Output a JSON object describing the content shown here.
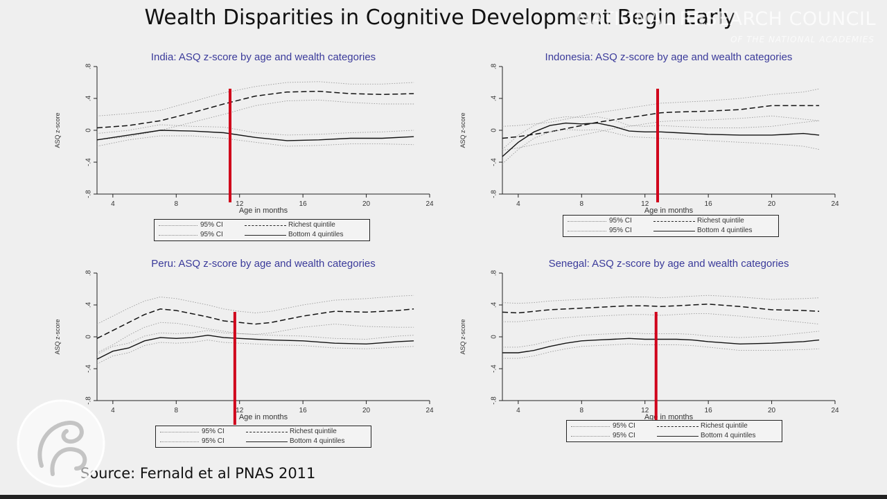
{
  "title": "Wealth Disparities in Cognitive Development Begin Early",
  "watermark": {
    "line1": "NATIONAL RESEARCH COUNCIL",
    "line2": "OF THE NATIONAL ACADEMIES"
  },
  "source": "Source: Fernald et al PNAS 2011",
  "colors": {
    "marker": "#d0021b",
    "title_blue": "#3a3a9a"
  },
  "legend": {
    "ci_label": "95% CI",
    "series_labels": [
      "Richest quintile",
      "Bottom 4 quintiles"
    ]
  },
  "chart_data": [
    {
      "type": "line",
      "title": "India: ASQ z-score by age and wealth categories",
      "xlabel": "Age in months",
      "ylabel": "ASQ z-score",
      "xlim": [
        3,
        24
      ],
      "ylim": [
        -0.8,
        0.8
      ],
      "xticks": [
        4,
        8,
        12,
        16,
        20,
        24
      ],
      "yticks": [
        -0.8,
        -0.4,
        0,
        0.4,
        0.8
      ],
      "ytick_labels": [
        "-.8",
        "-.4",
        "0",
        ".4",
        ".8"
      ],
      "marker_x": 11.4,
      "x": [
        3,
        5,
        7,
        9,
        11,
        13,
        15,
        17,
        19,
        21,
        23
      ],
      "series": [
        {
          "name": "Richest quintile",
          "values": [
            0.03,
            0.06,
            0.12,
            0.22,
            0.33,
            0.43,
            0.48,
            0.49,
            0.46,
            0.45,
            0.46
          ],
          "lower": [
            -0.12,
            -0.08,
            0.0,
            0.1,
            0.2,
            0.31,
            0.37,
            0.38,
            0.35,
            0.33,
            0.33
          ],
          "upper": [
            0.18,
            0.21,
            0.25,
            0.36,
            0.47,
            0.55,
            0.6,
            0.61,
            0.58,
            0.58,
            0.6
          ]
        },
        {
          "name": "Bottom 4 quintiles",
          "values": [
            -0.12,
            -0.06,
            0.0,
            -0.01,
            -0.03,
            -0.09,
            -0.13,
            -0.12,
            -0.1,
            -0.1,
            -0.08
          ],
          "lower": [
            -0.2,
            -0.12,
            -0.07,
            -0.07,
            -0.1,
            -0.15,
            -0.2,
            -0.19,
            -0.17,
            -0.17,
            -0.18
          ],
          "upper": [
            -0.04,
            0.0,
            0.07,
            0.05,
            0.04,
            -0.03,
            -0.06,
            -0.05,
            -0.03,
            -0.02,
            0.0
          ]
        }
      ]
    },
    {
      "type": "line",
      "title": "Indonesia: ASQ z-score by age and wealth categories",
      "xlabel": "Age in months",
      "ylabel": "ASQ z-score",
      "xlim": [
        3,
        24
      ],
      "ylim": [
        -0.8,
        0.8
      ],
      "xticks": [
        4,
        8,
        12,
        16,
        20,
        24
      ],
      "yticks": [
        -0.8,
        -0.4,
        0,
        0.4,
        0.8
      ],
      "ytick_labels": [
        "-.8",
        "-.4",
        "0",
        ".4",
        ".8"
      ],
      "marker_x": 12.8,
      "x": [
        3,
        4,
        5,
        6,
        7,
        8,
        9,
        10,
        11,
        12,
        13,
        14,
        16,
        18,
        20,
        22,
        23
      ],
      "series": [
        {
          "name": "Richest quintile",
          "values": [
            -0.1,
            -0.08,
            -0.05,
            -0.02,
            0.02,
            0.06,
            0.1,
            0.13,
            0.16,
            0.19,
            0.22,
            0.23,
            0.24,
            0.26,
            0.31,
            0.31,
            0.31
          ],
          "lower": [
            -0.25,
            -0.22,
            -0.18,
            -0.14,
            -0.1,
            -0.06,
            -0.02,
            0.02,
            0.05,
            0.08,
            0.11,
            0.12,
            0.13,
            0.15,
            0.18,
            0.14,
            0.12
          ],
          "upper": [
            0.05,
            0.06,
            0.08,
            0.1,
            0.14,
            0.18,
            0.22,
            0.25,
            0.28,
            0.31,
            0.34,
            0.35,
            0.37,
            0.4,
            0.45,
            0.48,
            0.52
          ]
        },
        {
          "name": "Bottom 4 quintiles",
          "values": [
            -0.33,
            -0.15,
            -0.02,
            0.06,
            0.09,
            0.08,
            0.09,
            0.05,
            -0.01,
            -0.02,
            -0.02,
            -0.03,
            -0.05,
            -0.06,
            -0.06,
            -0.04,
            -0.06
          ],
          "lower": [
            -0.42,
            -0.24,
            -0.1,
            -0.02,
            0.01,
            0.0,
            0.01,
            -0.03,
            -0.08,
            -0.09,
            -0.1,
            -0.11,
            -0.13,
            -0.15,
            -0.17,
            -0.2,
            -0.24
          ],
          "upper": [
            -0.24,
            -0.06,
            0.06,
            0.14,
            0.17,
            0.16,
            0.17,
            0.13,
            0.06,
            0.05,
            0.06,
            0.05,
            0.03,
            0.03,
            0.05,
            0.1,
            0.12
          ]
        }
      ]
    },
    {
      "type": "line",
      "title": "Peru: ASQ z-score by age and wealth categories",
      "xlabel": "Age in months",
      "ylabel": "ASQ z-score",
      "xlim": [
        3,
        24
      ],
      "ylim": [
        -0.8,
        0.8
      ],
      "xticks": [
        4,
        8,
        12,
        16,
        20,
        24
      ],
      "yticks": [
        -0.8,
        -0.4,
        0,
        0.4,
        0.8
      ],
      "ytick_labels": [
        "-.8",
        "-.4",
        "0",
        ".4",
        ".8"
      ],
      "marker_x": 11.7,
      "x": [
        3,
        4,
        5,
        6,
        7,
        8,
        9,
        10,
        11,
        12,
        13,
        14,
        16,
        18,
        20,
        22,
        23
      ],
      "series": [
        {
          "name": "Richest quintile",
          "values": [
            -0.02,
            0.08,
            0.18,
            0.28,
            0.35,
            0.33,
            0.29,
            0.25,
            0.2,
            0.18,
            0.16,
            0.18,
            0.26,
            0.32,
            0.31,
            0.33,
            0.35
          ],
          "lower": [
            -0.2,
            -0.1,
            0.02,
            0.12,
            0.18,
            0.17,
            0.14,
            0.1,
            0.07,
            0.04,
            0.03,
            0.05,
            0.12,
            0.16,
            0.13,
            0.12,
            0.12
          ],
          "upper": [
            0.16,
            0.26,
            0.36,
            0.45,
            0.5,
            0.48,
            0.44,
            0.4,
            0.35,
            0.32,
            0.3,
            0.32,
            0.4,
            0.46,
            0.48,
            0.51,
            0.52
          ]
        },
        {
          "name": "Bottom 4 quintiles",
          "values": [
            -0.28,
            -0.18,
            -0.14,
            -0.05,
            -0.01,
            -0.02,
            -0.01,
            0.02,
            -0.01,
            -0.02,
            -0.03,
            -0.04,
            -0.05,
            -0.08,
            -0.09,
            -0.06,
            -0.05
          ],
          "lower": [
            -0.34,
            -0.24,
            -0.2,
            -0.11,
            -0.07,
            -0.08,
            -0.07,
            -0.04,
            -0.07,
            -0.08,
            -0.09,
            -0.1,
            -0.11,
            -0.14,
            -0.15,
            -0.13,
            -0.12
          ],
          "upper": [
            -0.22,
            -0.12,
            -0.08,
            0.01,
            0.05,
            0.04,
            0.05,
            0.08,
            0.05,
            0.04,
            0.03,
            0.02,
            0.01,
            -0.02,
            -0.03,
            0.01,
            0.02
          ]
        }
      ]
    },
    {
      "type": "line",
      "title": "Senegal: ASQ z-score by age and wealth categories",
      "xlabel": "Age in months",
      "ylabel": "ASQ z-score",
      "xlim": [
        3,
        24
      ],
      "ylim": [
        -0.8,
        0.8
      ],
      "xticks": [
        4,
        8,
        12,
        16,
        20,
        24
      ],
      "yticks": [
        -0.8,
        -0.4,
        0,
        0.4,
        0.8
      ],
      "ytick_labels": [
        "-.8",
        "-.4",
        "0",
        ".4",
        ".8"
      ],
      "marker_x": 12.7,
      "x": [
        3,
        4,
        5,
        6,
        7,
        8,
        9,
        10,
        11,
        12,
        13,
        14,
        15,
        16,
        18,
        20,
        22,
        23
      ],
      "series": [
        {
          "name": "Richest quintile",
          "values": [
            0.31,
            0.3,
            0.32,
            0.34,
            0.35,
            0.36,
            0.37,
            0.38,
            0.39,
            0.39,
            0.38,
            0.39,
            0.4,
            0.41,
            0.38,
            0.34,
            0.33,
            0.32
          ],
          "lower": [
            0.19,
            0.19,
            0.21,
            0.23,
            0.24,
            0.25,
            0.26,
            0.27,
            0.28,
            0.28,
            0.27,
            0.28,
            0.29,
            0.29,
            0.26,
            0.22,
            0.18,
            0.16
          ],
          "upper": [
            0.43,
            0.42,
            0.43,
            0.45,
            0.46,
            0.47,
            0.48,
            0.49,
            0.5,
            0.5,
            0.49,
            0.5,
            0.51,
            0.52,
            0.5,
            0.47,
            0.48,
            0.49
          ]
        },
        {
          "name": "Bottom 4 quintiles",
          "values": [
            -0.2,
            -0.2,
            -0.17,
            -0.12,
            -0.08,
            -0.05,
            -0.04,
            -0.03,
            -0.02,
            -0.03,
            -0.03,
            -0.03,
            -0.04,
            -0.06,
            -0.09,
            -0.08,
            -0.06,
            -0.04
          ],
          "lower": [
            -0.27,
            -0.27,
            -0.24,
            -0.19,
            -0.15,
            -0.12,
            -0.11,
            -0.1,
            -0.09,
            -0.1,
            -0.1,
            -0.1,
            -0.11,
            -0.13,
            -0.17,
            -0.17,
            -0.16,
            -0.15
          ],
          "upper": [
            -0.13,
            -0.13,
            -0.1,
            -0.05,
            -0.01,
            0.02,
            0.03,
            0.04,
            0.05,
            0.04,
            0.04,
            0.04,
            0.03,
            0.01,
            -0.01,
            0.01,
            0.05,
            0.07
          ]
        }
      ]
    }
  ]
}
